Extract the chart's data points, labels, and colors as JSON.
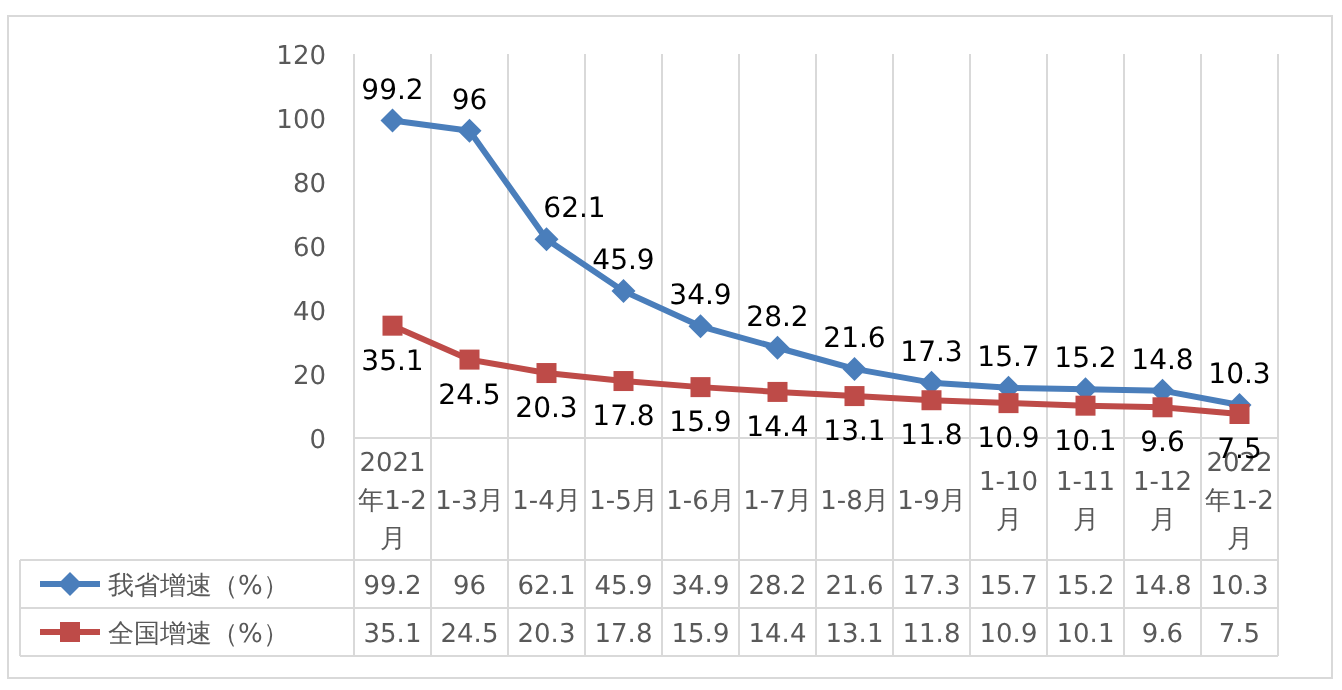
{
  "chart_data": {
    "type": "line",
    "categories": [
      "2021年1-2月",
      "1-3月",
      "1-4月",
      "1-5月",
      "1-6月",
      "1-7月",
      "1-8月",
      "1-9月",
      "1-10月",
      "1-11月",
      "1-12月",
      "2022年1-2月"
    ],
    "series": [
      {
        "name": "我省增速（%）",
        "color": "#4a7ebb",
        "marker": "diamond",
        "values": [
          99.2,
          96,
          62.1,
          45.9,
          34.9,
          28.2,
          21.6,
          17.3,
          15.7,
          15.2,
          14.8,
          10.3
        ],
        "value_labels": [
          "99.2",
          "96",
          "62.1",
          "45.9",
          "34.9",
          "28.2",
          "21.6",
          "17.3",
          "15.7",
          "15.2",
          "14.8",
          "10.3"
        ]
      },
      {
        "name": "全国增速（%）",
        "color": "#be4b48",
        "marker": "square",
        "values": [
          35.1,
          24.5,
          20.3,
          17.8,
          15.9,
          14.4,
          13.1,
          11.8,
          10.9,
          10.1,
          9.6,
          7.5
        ],
        "value_labels": [
          "35.1",
          "24.5",
          "20.3",
          "17.8",
          "15.9",
          "14.4",
          "13.1",
          "11.8",
          "10.9",
          "10.1",
          "9.6",
          "7.5"
        ]
      }
    ],
    "ylim": [
      0,
      120
    ],
    "yticks": [
      0,
      20,
      40,
      60,
      80,
      100,
      120
    ],
    "annotations": [
      "99.2",
      "96",
      "62.1",
      "45.9",
      "34.9",
      "28.2",
      "21.6",
      "17.3",
      "15.7",
      "15.2",
      "14.8",
      "10.3",
      "35.1",
      "24.5",
      "20.3",
      "17.8",
      "15.9",
      "14.4",
      "13.1",
      "11.8",
      "10.9",
      "10.1",
      "9.6",
      "7.5"
    ],
    "grid": "x",
    "legend": "bottom"
  }
}
